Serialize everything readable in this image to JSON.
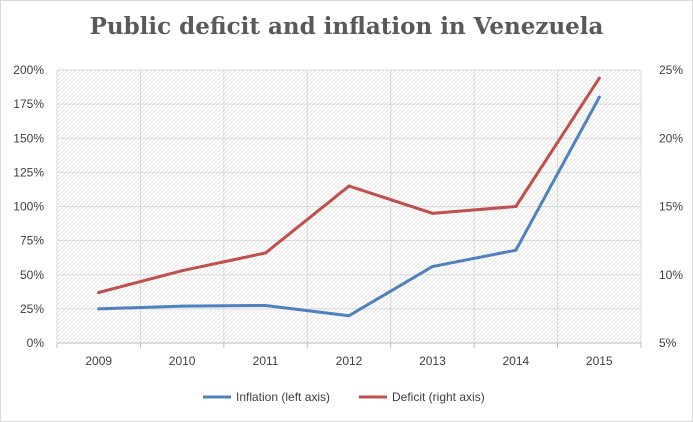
{
  "chart_data": {
    "type": "line",
    "title": "Public deficit and inflation in Venezuela",
    "categories": [
      "2009",
      "2010",
      "2011",
      "2012",
      "2013",
      "2014",
      "2015"
    ],
    "y_left": {
      "ylim": [
        0,
        200
      ],
      "ticks": [
        0,
        25,
        50,
        75,
        100,
        125,
        150,
        175,
        200
      ],
      "tick_labels": [
        "0%",
        "25%",
        "50%",
        "75%",
        "100%",
        "125%",
        "150%",
        "175%",
        "200%"
      ]
    },
    "y_right": {
      "ylim": [
        5,
        25
      ],
      "ticks": [
        5,
        10,
        15,
        20,
        25
      ],
      "tick_labels": [
        "5%",
        "10%",
        "15%",
        "20%",
        "25%"
      ]
    },
    "series": [
      {
        "name": "Inflation (left axis)",
        "axis": "left",
        "color": "#4f81bd",
        "values": [
          25,
          27,
          27.5,
          20,
          56,
          68,
          180
        ]
      },
      {
        "name": "Deficit (right axis)",
        "axis": "right",
        "color": "#c0504d",
        "values": [
          8.7,
          10.3,
          11.6,
          16.5,
          14.5,
          15.0,
          24.4
        ]
      }
    ],
    "grid": true,
    "legend_position": "bottom"
  }
}
